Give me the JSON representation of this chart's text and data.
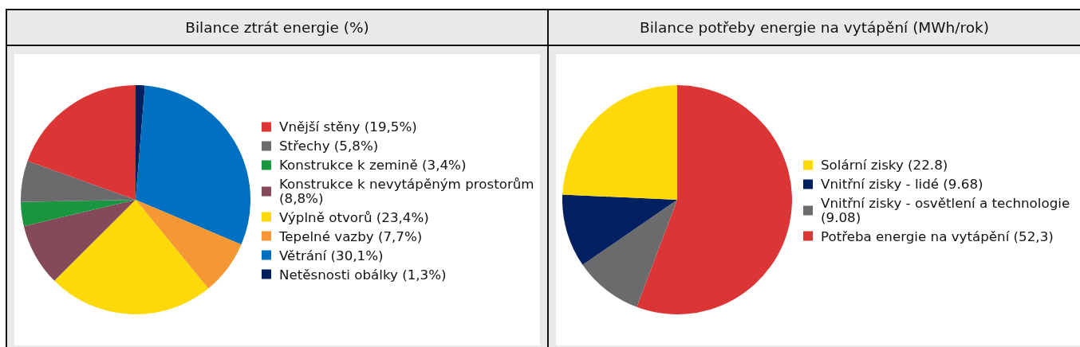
{
  "chart_data": [
    {
      "type": "pie",
      "title": "Bilance ztrát energie (%)",
      "categories": [
        "Vnější stěny (19,5%)",
        "Střechy (5,8%)",
        "Konstrukce k zemině (3,4%)",
        "Konstrukce k nevytápěným prostorům (8,8%)",
        "Výplně otvorů (23,4%)",
        "Tepelné vazby (7,7%)",
        "Větrání (30,1%)",
        "Netěsnosti obálky (1,3%)"
      ],
      "values": [
        19.5,
        5.8,
        3.4,
        8.8,
        23.4,
        7.7,
        30.1,
        1.3
      ],
      "colors": [
        "#db3536",
        "#6b6b6d",
        "#1a9641",
        "#854a5a",
        "#fcd907",
        "#f59733",
        "#0071c0",
        "#002060"
      ],
      "legend": "right"
    },
    {
      "type": "pie",
      "title": "Bilance potřeby energie na vytápění (MWh/rok)",
      "categories": [
        "Solární zisky (22.8)",
        "Vnitřní zisky - lidé (9.68)",
        "Vnitřní zisky - osvětlení a technologie (9.08)",
        "Potřeba energie na vytápění (52,3)"
      ],
      "values": [
        22.8,
        9.68,
        9.08,
        52.3
      ],
      "colors": [
        "#fcd907",
        "#002060",
        "#6b6b6d",
        "#db3536"
      ],
      "legend": "right"
    }
  ]
}
